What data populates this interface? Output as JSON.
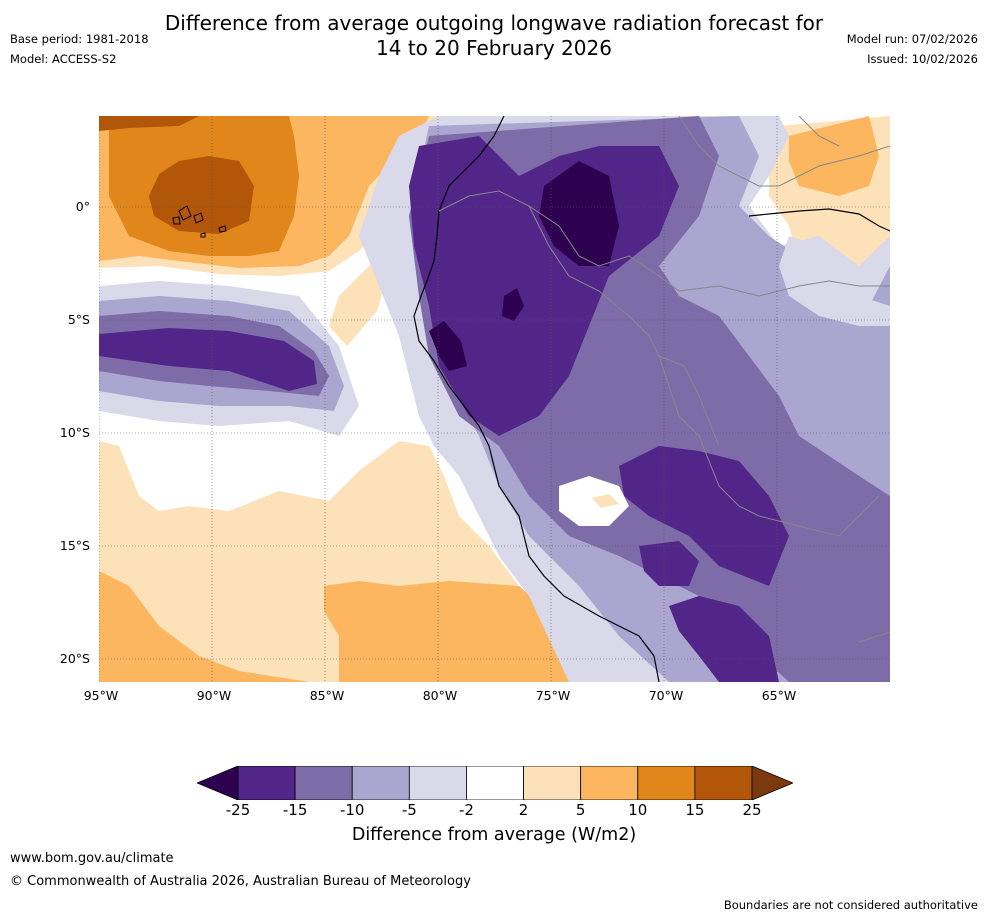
{
  "header": {
    "title_line1": "Difference from average outgoing longwave radiation forecast for",
    "title_line2": "14 to 20 February 2026",
    "base_period": "Base period: 1981-2018",
    "model": "Model: ACCESS-S2",
    "model_run": "Model run: 07/02/2026",
    "issued": "Issued: 10/02/2026"
  },
  "map": {
    "lat_labels": [
      "0°",
      "5°S",
      "10°S",
      "15°S",
      "20°S"
    ],
    "lon_labels": [
      "95°W",
      "90°W",
      "85°W",
      "80°W",
      "75°W",
      "70°W",
      "65°W"
    ]
  },
  "legend": {
    "label": "Difference from average (W/m2)",
    "ticks": [
      "-25",
      "-15",
      "-10",
      "-5",
      "-2",
      "2",
      "5",
      "10",
      "15",
      "25"
    ],
    "colors": {
      "under": "#2d0050",
      "bins": [
        "#512688",
        "#7d6ca8",
        "#aba6cf",
        "#d9d9ea",
        "#ffffff",
        "#fde1b9",
        "#fbb65f",
        "#e1861b",
        "#b25709"
      ],
      "over": "#7a3a0e"
    }
  },
  "footer": {
    "url": "www.bom.gov.au/climate",
    "copyright": "© Commonwealth of Australia 2026, Australian Bureau of Meteorology",
    "disclaimer": "Boundaries are not considered authoritative"
  }
}
